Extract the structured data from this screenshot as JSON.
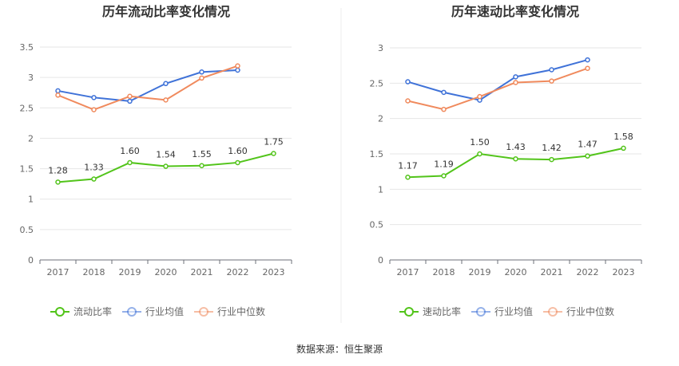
{
  "source_text": "数据来源：恒生聚源",
  "chart_data": [
    {
      "type": "line",
      "title": "历年流动比率变化情况",
      "categories": [
        "2017",
        "2018",
        "2019",
        "2020",
        "2021",
        "2022",
        "2023"
      ],
      "ylim": [
        0,
        3.5
      ],
      "yticks": [
        "0",
        "0.5",
        "1",
        "1.5",
        "2",
        "2.5",
        "3",
        "3.5"
      ],
      "grid": true,
      "legend_position": "bottom",
      "series": [
        {
          "name": "流动比率",
          "color": "#52c41a",
          "values": [
            1.28,
            1.33,
            1.6,
            1.54,
            1.55,
            1.6,
            1.75
          ],
          "labels": [
            "1.28",
            "1.33",
            "1.60",
            "1.54",
            "1.55",
            "1.60",
            "1.75"
          ]
        },
        {
          "name": "行业均值",
          "color": "#3f72d8",
          "values": [
            2.78,
            2.67,
            2.61,
            2.9,
            3.09,
            3.12,
            null
          ]
        },
        {
          "name": "行业中位数",
          "color": "#f08a5d",
          "values": [
            2.71,
            2.47,
            2.69,
            2.63,
            2.99,
            3.19,
            null
          ]
        }
      ]
    },
    {
      "type": "line",
      "title": "历年速动比率变化情况",
      "categories": [
        "2017",
        "2018",
        "2019",
        "2020",
        "2021",
        "2022",
        "2023"
      ],
      "ylim": [
        0,
        3
      ],
      "yticks": [
        "0",
        "0.5",
        "1",
        "1.5",
        "2",
        "2.5",
        "3"
      ],
      "grid": true,
      "legend_position": "bottom",
      "series": [
        {
          "name": "速动比率",
          "color": "#52c41a",
          "values": [
            1.17,
            1.19,
            1.5,
            1.43,
            1.42,
            1.47,
            1.58
          ],
          "labels": [
            "1.17",
            "1.19",
            "1.50",
            "1.43",
            "1.42",
            "1.47",
            "1.58"
          ]
        },
        {
          "name": "行业均值",
          "color": "#3f72d8",
          "values": [
            2.52,
            2.37,
            2.26,
            2.59,
            2.69,
            2.83,
            null
          ]
        },
        {
          "name": "行业中位数",
          "color": "#f08a5d",
          "values": [
            2.25,
            2.13,
            2.31,
            2.51,
            2.53,
            2.71,
            null
          ]
        }
      ]
    }
  ]
}
